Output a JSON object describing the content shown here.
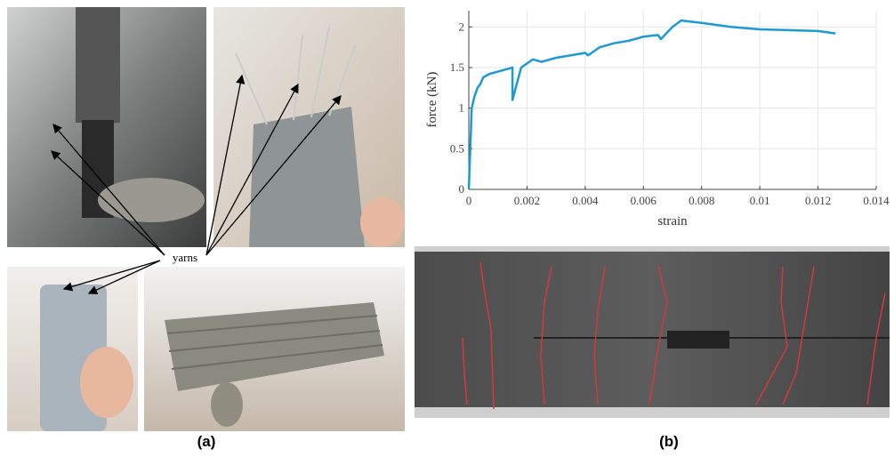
{
  "chart_data": {
    "type": "line",
    "x_label": "strain",
    "y_label": "force (kN)",
    "x": [
      0,
      0.0001,
      0.0002,
      0.0003,
      0.0004,
      0.0005,
      0.0007,
      0.001,
      0.0013,
      0.0015,
      0.0015,
      0.0018,
      0.002,
      0.0022,
      0.0025,
      0.003,
      0.0035,
      0.004,
      0.0041,
      0.0045,
      0.005,
      0.0055,
      0.006,
      0.0065,
      0.0066,
      0.007,
      0.0073,
      0.0075,
      0.008,
      0.009,
      0.01,
      0.011,
      0.012,
      0.0126
    ],
    "series": [
      {
        "color": "#1a9ad6",
        "values": [
          0,
          1.0,
          1.15,
          1.25,
          1.3,
          1.38,
          1.42,
          1.45,
          1.48,
          1.5,
          1.1,
          1.5,
          1.55,
          1.6,
          1.57,
          1.62,
          1.65,
          1.68,
          1.65,
          1.75,
          1.8,
          1.83,
          1.88,
          1.9,
          1.85,
          2.0,
          2.08,
          2.07,
          2.05,
          2.0,
          1.97,
          1.96,
          1.95,
          1.92
        ]
      }
    ],
    "xlim": [
      0,
      0.014
    ],
    "ylim": [
      0,
      2.2
    ],
    "xticks": [
      0,
      0.002,
      0.004,
      0.006,
      0.008,
      0.01,
      0.012,
      0.014
    ],
    "yticks": [
      0,
      0.5,
      1,
      1.5,
      2
    ],
    "grid": true
  },
  "annotations": {
    "yarns": "yarns",
    "panel_a": "(a)",
    "panel_b": "(b)"
  }
}
